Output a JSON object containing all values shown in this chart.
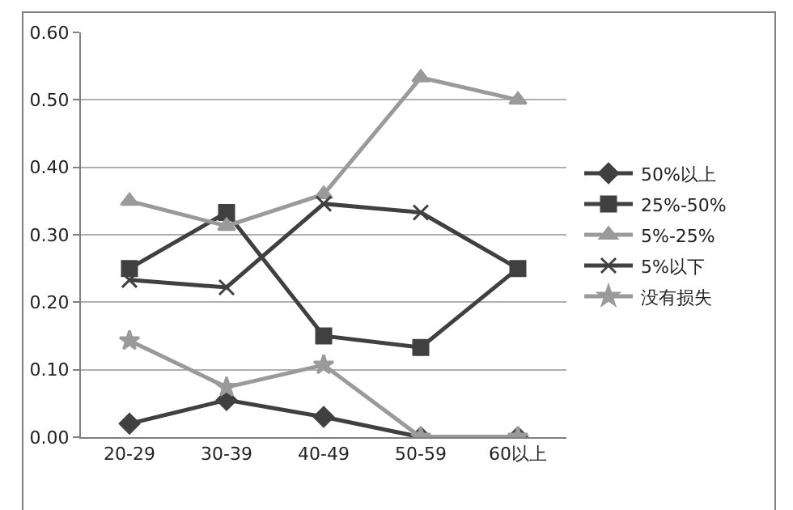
{
  "chart_data": {
    "type": "line",
    "categories": [
      "20-29",
      "30-39",
      "40-49",
      "50-59",
      "60以上"
    ],
    "series": [
      {
        "name": "50%以上",
        "color": "#404040",
        "marker": "diamond",
        "values": [
          0.02,
          0.055,
          0.03,
          0,
          0
        ]
      },
      {
        "name": "25%-50%",
        "color": "#404040",
        "marker": "square",
        "values": [
          0.25,
          0.333,
          0.15,
          0.133,
          0.25
        ]
      },
      {
        "name": "5%-25%",
        "color": "#9a9a9a",
        "marker": "triangle",
        "values": [
          0.35,
          0.313,
          0.36,
          0.533,
          0.5
        ]
      },
      {
        "name": "5%以下",
        "color": "#404040",
        "marker": "cross",
        "values": [
          0.233,
          0.222,
          0.346,
          0.333,
          0.25
        ]
      },
      {
        "name": "没有损失",
        "color": "#9a9a9a",
        "marker": "star",
        "values": [
          0.143,
          0.074,
          0.107,
          0,
          0
        ]
      }
    ],
    "ylim": [
      0,
      0.6
    ],
    "yticks": [
      {
        "value": 0,
        "label": "0.00"
      },
      {
        "value": 0.1,
        "label": "0.10"
      },
      {
        "value": 0.2,
        "label": "0.20"
      },
      {
        "value": 0.3,
        "label": "0.30"
      },
      {
        "value": 0.4,
        "label": "0.40"
      },
      {
        "value": 0.5,
        "label": "0.50"
      },
      {
        "value": 0.6,
        "label": "0.60"
      }
    ],
    "grid": "y",
    "legend": "right",
    "line_style": "solid"
  }
}
